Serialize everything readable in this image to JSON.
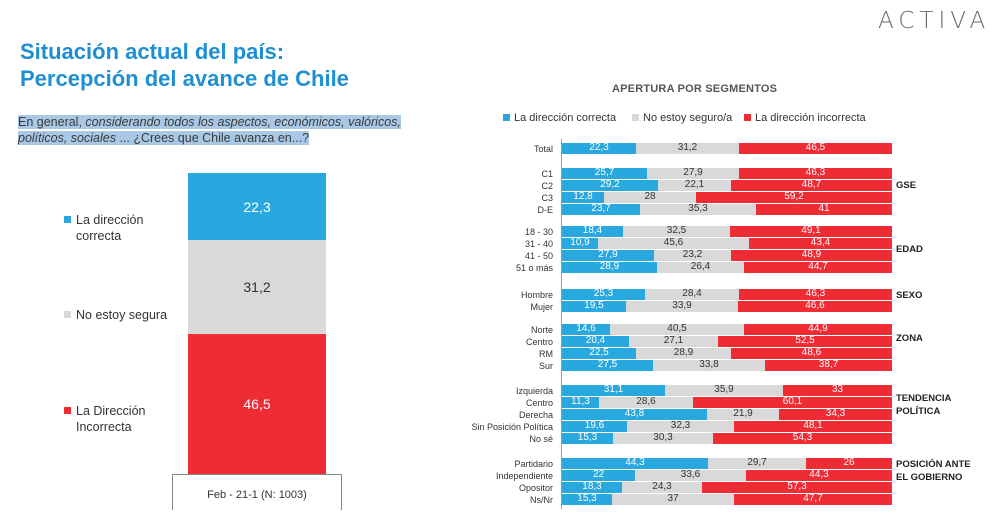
{
  "brand": "ACTIVA",
  "title_line1": "Situación actual del país:",
  "title_line2": "Percepción del avance de Chile",
  "question": {
    "part1": "En general, ",
    "part2": "considerando todos los aspectos, económicos, valóricos,",
    "part3": "políticos, sociales",
    "part4": " ... ¿Crees que Chile avanza en...?"
  },
  "colors": {
    "correcta": "#29a8e0",
    "no_seguro": "#d9d9d9",
    "incorrecta": "#ef2b34"
  },
  "left_chart": {
    "legend": {
      "correcta": "La dirección correcta",
      "no_segura": "No estoy segura",
      "incorrecta": "La Dirección Incorrecta"
    },
    "caption": "Feb - 21-1 (N: 1003)"
  },
  "right_chart": {
    "title": "APERTURA POR SEGMENTOS",
    "legend": {
      "correcta": "La dirección correcta",
      "no_seguro": "No estoy seguro/a",
      "incorrecta": "La dirección incorrecta"
    }
  },
  "chart_data": [
    {
      "type": "bar",
      "stacked": true,
      "categories": [
        "Feb - 21-1 (N: 1003)"
      ],
      "series": [
        {
          "name": "La dirección correcta",
          "values": [
            22.3
          ]
        },
        {
          "name": "No estoy segura",
          "values": [
            31.2
          ]
        },
        {
          "name": "La Dirección Incorrecta",
          "values": [
            46.5
          ]
        }
      ]
    },
    {
      "type": "bar",
      "stacked": true,
      "orientation": "horizontal",
      "title": "APERTURA POR SEGMENTOS",
      "series_names": [
        "La dirección correcta",
        "No estoy seguro/a",
        "La dirección incorrecta"
      ],
      "groups": [
        {
          "label": "",
          "rows": [
            {
              "label": "Total",
              "values": [
                "22,3",
                "31,2",
                "46,5"
              ]
            }
          ]
        },
        {
          "label": "GSE",
          "rows": [
            {
              "label": "C1",
              "values": [
                "25,7",
                "27,9",
                "46,3"
              ]
            },
            {
              "label": "C2",
              "values": [
                "29,2",
                "22,1",
                "48,7"
              ]
            },
            {
              "label": "C3",
              "values": [
                "12,8",
                "28",
                "59,2"
              ]
            },
            {
              "label": "D-E",
              "values": [
                "23,7",
                "35,3",
                "41"
              ]
            }
          ]
        },
        {
          "label": "EDAD",
          "rows": [
            {
              "label": "18 - 30",
              "values": [
                "18,4",
                "32,5",
                "49,1"
              ]
            },
            {
              "label": "31 - 40",
              "values": [
                "10,9",
                "45,6",
                "43,4"
              ]
            },
            {
              "label": "41 - 50",
              "values": [
                "27,9",
                "23,2",
                "48,9"
              ]
            },
            {
              "label": "51 o más",
              "values": [
                "28,9",
                "26,4",
                "44,7"
              ]
            }
          ]
        },
        {
          "label": "SEXO",
          "rows": [
            {
              "label": "Hombre",
              "values": [
                "25,3",
                "28,4",
                "46,3"
              ]
            },
            {
              "label": "Mujer",
              "values": [
                "19,5",
                "33,9",
                "46,6"
              ]
            }
          ]
        },
        {
          "label": "ZONA",
          "rows": [
            {
              "label": "Norte",
              "values": [
                "14,6",
                "40,5",
                "44,9"
              ]
            },
            {
              "label": "Centro",
              "values": [
                "20,4",
                "27,1",
                "52,5"
              ]
            },
            {
              "label": "RM",
              "values": [
                "22,5",
                "28,9",
                "48,6"
              ]
            },
            {
              "label": "Sur",
              "values": [
                "27,5",
                "33,8",
                "38,7"
              ]
            }
          ]
        },
        {
          "label": "TENDENCIA POLÍTICA",
          "rows": [
            {
              "label": "Izquierda",
              "values": [
                "31,1",
                "35,9",
                "33"
              ]
            },
            {
              "label": "Centro",
              "values": [
                "11,3",
                "28,6",
                "60,1"
              ]
            },
            {
              "label": "Derecha",
              "values": [
                "43,8",
                "21,9",
                "34,3"
              ]
            },
            {
              "label": "Sin Posición Política",
              "values": [
                "19,6",
                "32,3",
                "48,1"
              ]
            },
            {
              "label": "No sé",
              "values": [
                "15,3",
                "30,3",
                "54,3"
              ]
            }
          ]
        },
        {
          "label": "POSICIÓN ANTE EL GOBIERNO",
          "rows": [
            {
              "label": "Partidario",
              "values": [
                "44,3",
                "29,7",
                "26"
              ]
            },
            {
              "label": "Independiente",
              "values": [
                "22",
                "33,6",
                "44,3"
              ]
            },
            {
              "label": "Opositor",
              "values": [
                "18,3",
                "24,3",
                "57,3"
              ]
            },
            {
              "label": "Ns/Nr",
              "values": [
                "15,3",
                "37",
                "47,7"
              ]
            }
          ]
        }
      ]
    }
  ]
}
